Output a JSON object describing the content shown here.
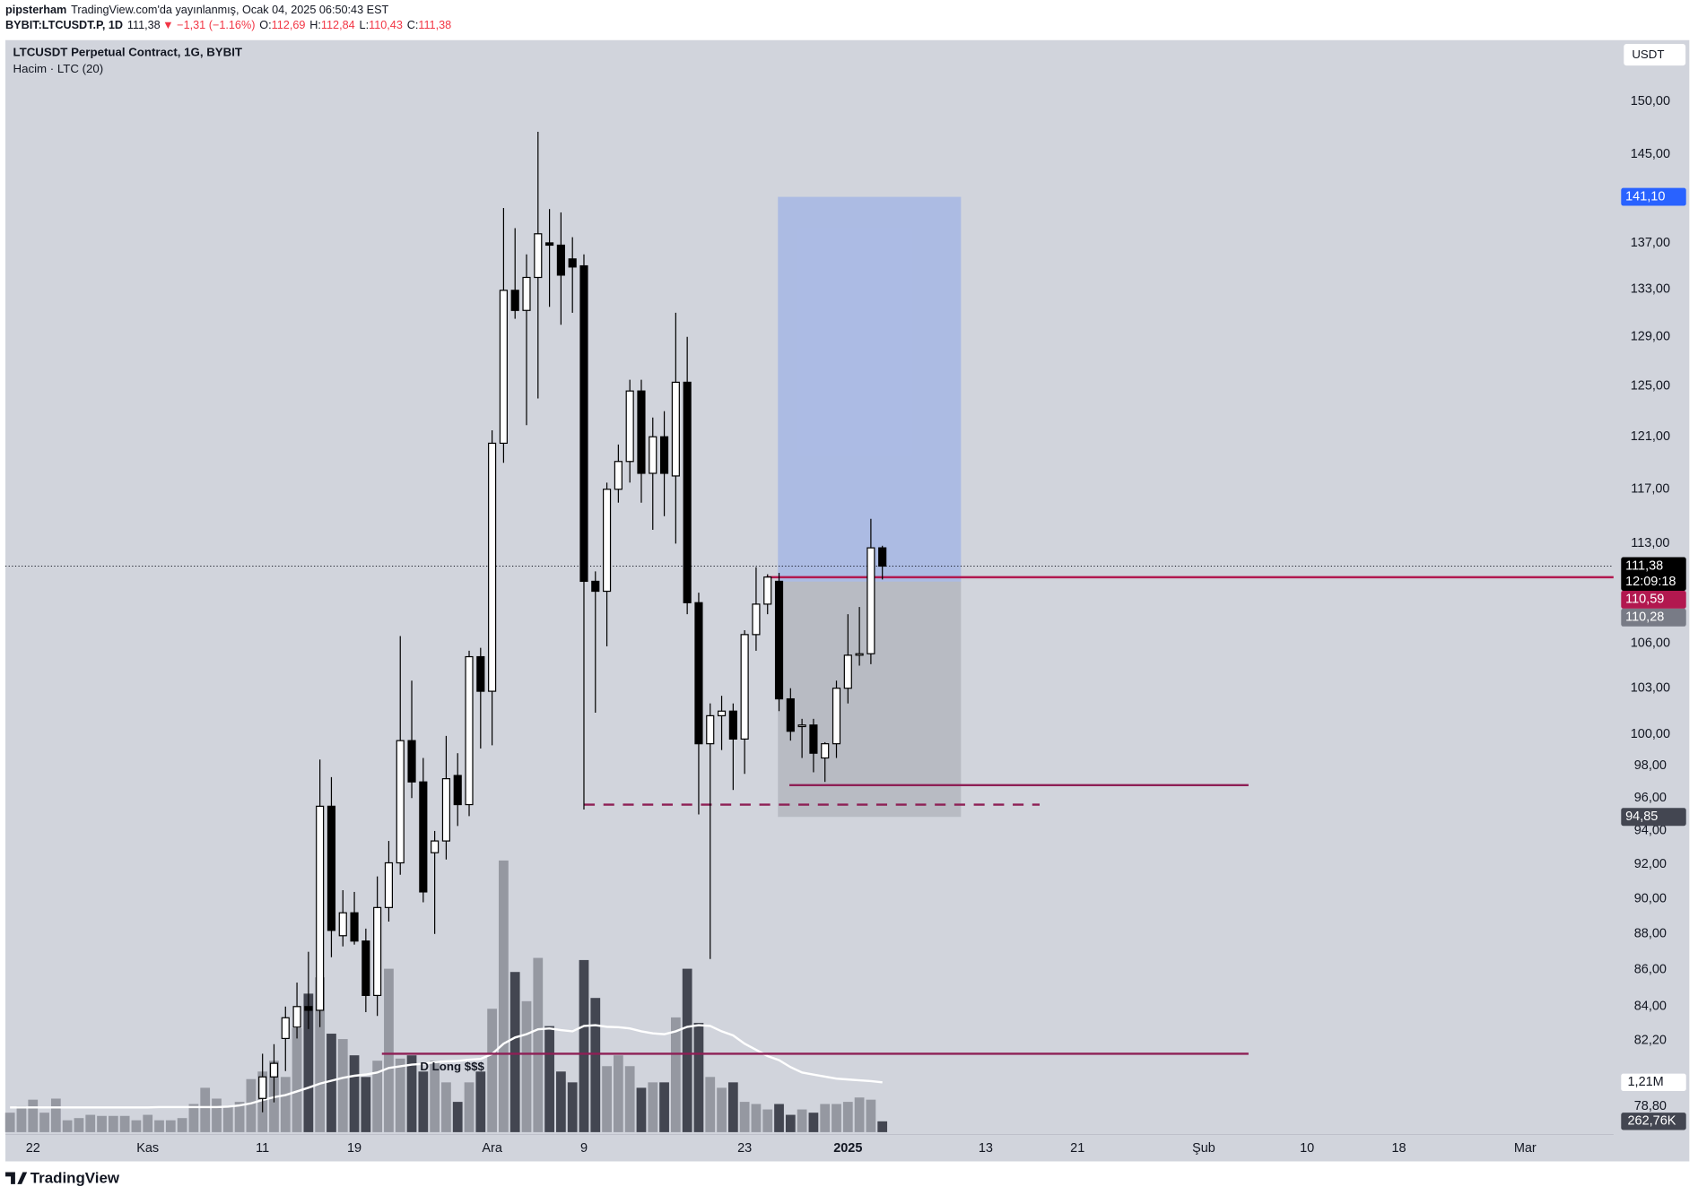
{
  "header": {
    "author": "pipsterham",
    "published": "TradingView.com'da yayınlanmış, Ocak 04, 2025 06:50:43 EST",
    "symbol": "BYBIT:LTCUSDT.P, 1D",
    "price": "111,38",
    "change": "▼ −1,31 (−1.16%)",
    "ohlc": [
      {
        "key": "O:",
        "value": "112,69"
      },
      {
        "key": "H:",
        "value": "112,84"
      },
      {
        "key": "L:",
        "value": "110,43"
      },
      {
        "key": "C:",
        "value": "111,38"
      }
    ],
    "logo": "TradingView"
  },
  "chart_data": {
    "type": "candlestick",
    "title": "LTCUSDT Perpetual Contract, 1G, BYBIT",
    "subtitle": "Hacim · LTC (20)",
    "currency": "USDT",
    "log_scale": true,
    "grid": false,
    "xlim": [
      -2.4,
      137.7
    ],
    "ylim": [
      77.4,
      156.0
    ],
    "xticks": [
      {
        "value": 0,
        "label": "22"
      },
      {
        "value": 10,
        "label": "Kas"
      },
      {
        "value": 20,
        "label": "11"
      },
      {
        "value": 28,
        "label": "19"
      },
      {
        "value": 40,
        "label": "Ara"
      },
      {
        "value": 48,
        "label": "9"
      },
      {
        "value": 62,
        "label": "23"
      },
      {
        "value": 71,
        "label": "2025"
      },
      {
        "value": 83,
        "label": "13"
      },
      {
        "value": 91,
        "label": "21"
      },
      {
        "value": 102,
        "label": "Şub"
      },
      {
        "value": 111,
        "label": "10"
      },
      {
        "value": 119,
        "label": "18"
      },
      {
        "value": 130,
        "label": "Mar"
      }
    ],
    "bold_xtick": "2025",
    "yticks": [
      {
        "value": 150,
        "label": "150,00"
      },
      {
        "value": 145,
        "label": "145,00"
      },
      {
        "value": 137,
        "label": "137,00"
      },
      {
        "value": 133,
        "label": "133,00"
      },
      {
        "value": 129,
        "label": "129,00"
      },
      {
        "value": 125,
        "label": "125,00"
      },
      {
        "value": 121,
        "label": "121,00"
      },
      {
        "value": 117,
        "label": "117,00"
      },
      {
        "value": 113,
        "label": "113,00"
      },
      {
        "value": 106,
        "label": "106,00"
      },
      {
        "value": 103,
        "label": "103,00"
      },
      {
        "value": 100,
        "label": "100,00"
      },
      {
        "value": 98,
        "label": "98,00"
      },
      {
        "value": 96,
        "label": "96,00"
      },
      {
        "value": 94,
        "label": "94,00"
      },
      {
        "value": 92,
        "label": "92,00"
      },
      {
        "value": 90,
        "label": "90,00"
      },
      {
        "value": 88,
        "label": "88,00"
      },
      {
        "value": 86,
        "label": "86,00"
      },
      {
        "value": 84,
        "label": "84,00"
      },
      {
        "value": 82.2,
        "label": "82,20"
      },
      {
        "value": 78.8,
        "label": "78,80"
      }
    ],
    "candles": {
      "up_color": "#ffffff",
      "down_color": "#000000",
      "x": [
        20,
        21,
        22,
        23,
        24,
        25,
        26,
        27,
        28,
        29,
        30,
        31,
        32,
        33,
        34,
        35,
        36,
        37,
        38,
        39,
        40,
        41,
        42,
        43,
        44,
        45,
        46,
        47,
        48,
        49,
        50,
        51,
        52,
        53,
        54,
        55,
        56,
        57,
        58,
        59,
        60,
        61,
        62,
        63,
        64,
        65,
        66,
        67,
        68,
        69,
        70,
        71,
        72,
        73,
        74
      ],
      "open": [
        79.2,
        80.3,
        82.3,
        82.9,
        84.0,
        83.8,
        95.5,
        87.9,
        89.2,
        87.6,
        84.6,
        89.5,
        92.1,
        99.6,
        97.0,
        92.7,
        93.4,
        97.4,
        95.6,
        105.1,
        102.8,
        120.5,
        132.9,
        131.2,
        134.0,
        137.0,
        136.8,
        135.6,
        135.0,
        110.3,
        109.6,
        117.0,
        119.1,
        124.6,
        118.2,
        121.0,
        118.0,
        125.3,
        108.8,
        99.4,
        101.2,
        101.5,
        99.7,
        106.6,
        108.7,
        110.3,
        102.3,
        100.5,
        100.6,
        98.5,
        99.4,
        103.0,
        105.2,
        105.3,
        112.69
      ],
      "high": [
        81.5,
        82.0,
        84.0,
        85.3,
        87.0,
        98.4,
        97.3,
        90.5,
        90.4,
        88.3,
        91.3,
        93.4,
        106.5,
        103.5,
        98.5,
        94.0,
        99.9,
        98.8,
        105.5,
        105.7,
        121.5,
        140.1,
        138.3,
        136.0,
        147.1,
        140.0,
        139.7,
        137.5,
        136.0,
        111.0,
        117.5,
        120.4,
        125.5,
        125.5,
        122.5,
        123.0,
        131.0,
        129.0,
        109.5,
        102.0,
        102.5,
        102.0,
        106.9,
        111.3,
        110.8,
        110.9,
        103.0,
        101.0,
        101.0,
        99.5,
        103.5,
        108.0,
        108.5,
        114.8,
        112.84
      ],
      "low": [
        78.5,
        79.0,
        80.6,
        82.3,
        82.8,
        82.9,
        86.7,
        87.3,
        87.4,
        83.7,
        83.5,
        88.7,
        91.4,
        96.0,
        89.8,
        88.0,
        92.3,
        94.3,
        94.9,
        99.1,
        99.3,
        119.0,
        130.5,
        121.9,
        124.0,
        131.5,
        130.0,
        131.0,
        95.3,
        101.4,
        105.8,
        116.0,
        117.5,
        116.0,
        114.0,
        115.0,
        113.0,
        108.0,
        95.0,
        86.6,
        99.0,
        96.5,
        97.5,
        105.5,
        108.0,
        101.5,
        99.6,
        98.5,
        97.6,
        97.0,
        98.5,
        102.0,
        104.5,
        104.6,
        110.43
      ],
      "close": [
        80.3,
        81.0,
        83.4,
        84.0,
        83.8,
        95.5,
        88.2,
        89.2,
        87.6,
        84.6,
        89.5,
        92.1,
        99.6,
        97.0,
        90.4,
        93.4,
        97.2,
        95.6,
        105.1,
        102.8,
        120.5,
        132.9,
        131.2,
        134.0,
        137.8,
        136.8,
        134.2,
        134.9,
        110.3,
        109.6,
        117.0,
        119.1,
        124.6,
        118.2,
        121.0,
        118.2,
        125.3,
        108.8,
        99.4,
        101.2,
        101.5,
        99.7,
        106.6,
        108.7,
        110.6,
        102.3,
        100.2,
        100.6,
        98.8,
        99.4,
        103.0,
        105.2,
        105.3,
        112.69,
        111.38
      ]
    },
    "last_price": {
      "value": 111.38,
      "label": "111,38"
    },
    "countdown": "12:09:18",
    "volume": {
      "up_color": "#9598a1",
      "down_color": "#434651",
      "ma_color": "#ffffff",
      "x": [
        -2,
        -1,
        0,
        1,
        2,
        3,
        4,
        5,
        6,
        7,
        8,
        9,
        10,
        11,
        12,
        13,
        14,
        15,
        16,
        17,
        18,
        19,
        20,
        21,
        22,
        23,
        24,
        25,
        26,
        27,
        28,
        29,
        30,
        31,
        32,
        33,
        34,
        35,
        36,
        37,
        38,
        39,
        40,
        41,
        42,
        43,
        44,
        45,
        46,
        47,
        48,
        49,
        50,
        51,
        52,
        53,
        54,
        55,
        56,
        57,
        58,
        59,
        60,
        61,
        62,
        63,
        64,
        65,
        66,
        67,
        68,
        69,
        70,
        71,
        72,
        73,
        74
      ],
      "values": [
        473000,
        631000,
        789000,
        473000,
        815000,
        289000,
        342000,
        421000,
        395000,
        395000,
        395000,
        289000,
        421000,
        289000,
        289000,
        342000,
        684000,
        1078000,
        815000,
        631000,
        736000,
        1289000,
        1473000,
        1736000,
        1341000,
        2525000,
        3366000,
        3761000,
        2393000,
        2262000,
        1867000,
        1341000,
        1736000,
        3971000,
        1788000,
        1867000,
        1473000,
        1736000,
        1210000,
        736000,
        1210000,
        1473000,
        2998000,
        6601000,
        3892000,
        3182000,
        4234000,
        2577000,
        1473000,
        1210000,
        4182000,
        3261000,
        1604000,
        1867000,
        1604000,
        1078000,
        1210000,
        1210000,
        2788000,
        3971000,
        2656000,
        1341000,
        1078000,
        1210000,
        736000,
        684000,
        552000,
        684000,
        421000,
        552000,
        473000,
        684000,
        684000,
        736000,
        842000,
        789000,
        262760
      ],
      "ma": [
        600000,
        600000,
        600000,
        600000,
        600000,
        600000,
        600000,
        600000,
        600000,
        600000,
        600000,
        600000,
        600000,
        610000,
        610000,
        610000,
        610000,
        610000,
        610000,
        620000,
        650000,
        700000,
        780000,
        850000,
        900000,
        990000,
        1080000,
        1180000,
        1250000,
        1320000,
        1370000,
        1400000,
        1450000,
        1560000,
        1600000,
        1640000,
        1660000,
        1700000,
        1720000,
        1730000,
        1760000,
        1780000,
        1900000,
        2150000,
        2300000,
        2380000,
        2500000,
        2520000,
        2480000,
        2450000,
        2580000,
        2600000,
        2560000,
        2550000,
        2520000,
        2450000,
        2400000,
        2380000,
        2450000,
        2560000,
        2600000,
        2580000,
        2450000,
        2350000,
        2150000,
        2000000,
        1850000,
        1750000,
        1580000,
        1450000,
        1400000,
        1350000,
        1300000,
        1280000,
        1260000,
        1240000,
        1210000
      ],
      "ma_label": {
        "value": 1210000,
        "label": "1,21M"
      },
      "last_label": {
        "value": 262760,
        "label": "262,76K"
      }
    },
    "position": {
      "x": [
        64.9,
        80.85
      ],
      "entry": {
        "value": 110.28,
        "label": "110,28"
      },
      "target": {
        "value": 141.1,
        "label": "141,10"
      },
      "stop": {
        "value": 94.85,
        "label": "94,85"
      },
      "target_color": "rgba(41,98,255,0.22)",
      "stop_color": "rgba(120,123,134,0.28)",
      "target_label_color": "#2962ff",
      "entry_label_color": "#787b86",
      "stop_label_color": "#434651"
    },
    "lines": [
      {
        "price": 110.59,
        "x": [
          63.9,
          137.7
        ],
        "color": "#b2184f",
        "dashed": false,
        "label": "110,59"
      },
      {
        "price": 96.8,
        "x": [
          65.9,
          105.9
        ],
        "color": "#8e1f55",
        "dashed": false
      },
      {
        "price": 95.6,
        "x": [
          48.0,
          87.7
        ],
        "color": "#8e1f55",
        "dashed": true
      },
      {
        "price": 81.5,
        "x": [
          30.4,
          105.9
        ],
        "color": "#8e1f55",
        "dashed": false
      }
    ],
    "annotation": "D Long $$$"
  }
}
